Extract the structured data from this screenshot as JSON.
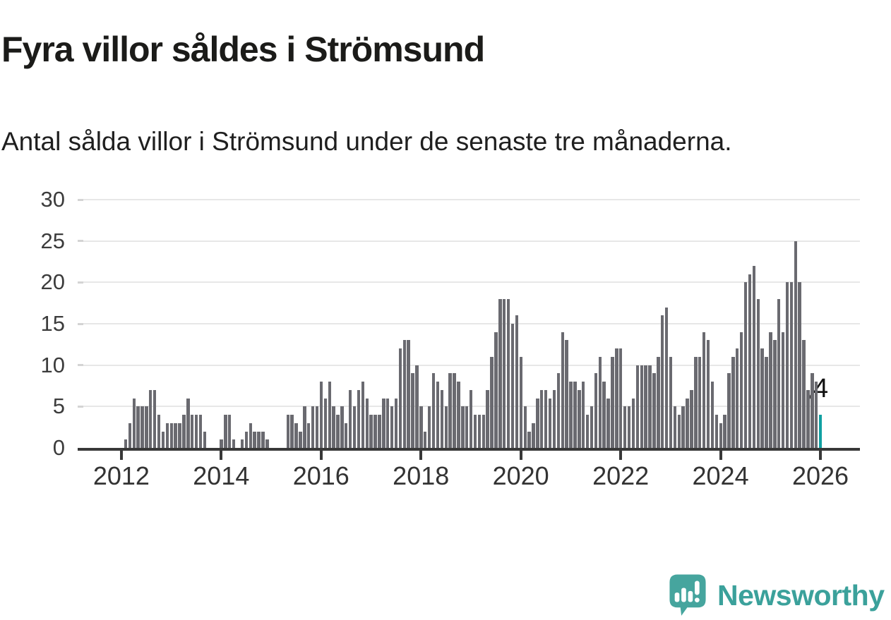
{
  "title": "Fyra villor såldes i Strömsund",
  "subtitle": "Antal sålda villor i Strömsund under de senaste tre månaderna.",
  "annotation": {
    "value_label": "4"
  },
  "branding": {
    "name": "Newsworthy",
    "icon": "newsworthy-speech-bubble-chart-icon"
  },
  "colors": {
    "bar": "#6a6a70",
    "highlight": "#11a0a2",
    "axis": "#383838",
    "grid": "#e7e7e7",
    "text": "#1f1f1f",
    "logo": "#46a59e",
    "logo_text": "#3ba19b"
  },
  "chart_data": {
    "type": "bar",
    "title": "Fyra villor såldes i Strömsund",
    "subtitle": "Antal sålda villor i Strömsund under de senaste tre månaderna.",
    "x_frequency": "monthly",
    "x_start_month": "2011-03",
    "ylim": [
      0,
      30
    ],
    "yticks": [
      0,
      5,
      10,
      15,
      20,
      25,
      30
    ],
    "grid": true,
    "slot_count": 188,
    "xticks": [
      {
        "index": 10,
        "label": "2012"
      },
      {
        "index": 34,
        "label": "2014"
      },
      {
        "index": 58,
        "label": "2016"
      },
      {
        "index": 82,
        "label": "2018"
      },
      {
        "index": 106,
        "label": "2020"
      },
      {
        "index": 130,
        "label": "2022"
      },
      {
        "index": 154,
        "label": "2024"
      },
      {
        "index": 178,
        "label": "2026"
      }
    ],
    "highlight_index": 178,
    "highlight_value": 4,
    "values": [
      0,
      0,
      0,
      0,
      0,
      0,
      0,
      0,
      0,
      0,
      0,
      1,
      3,
      6,
      5,
      5,
      5,
      7,
      7,
      4,
      2,
      3,
      3,
      3,
      3,
      4,
      6,
      4,
      4,
      4,
      2,
      0,
      0,
      0,
      1,
      4,
      4,
      1,
      0,
      1,
      2,
      3,
      2,
      2,
      2,
      1,
      0,
      0,
      0,
      0,
      4,
      4,
      3,
      2,
      5,
      3,
      5,
      5,
      8,
      6,
      8,
      5,
      4,
      5,
      3,
      7,
      5,
      7,
      8,
      6,
      4,
      4,
      4,
      6,
      6,
      5,
      6,
      12,
      13,
      13,
      9,
      10,
      5,
      2,
      5,
      9,
      8,
      7,
      5,
      9,
      9,
      8,
      5,
      5,
      7,
      4,
      4,
      4,
      7,
      11,
      14,
      18,
      18,
      18,
      15,
      16,
      11,
      5,
      2,
      3,
      6,
      7,
      7,
      6,
      7,
      9,
      14,
      13,
      8,
      8,
      7,
      8,
      4,
      5,
      9,
      11,
      8,
      6,
      11,
      12,
      12,
      5,
      5,
      6,
      10,
      10,
      10,
      10,
      9,
      11,
      16,
      17,
      11,
      5,
      4,
      5,
      6,
      7,
      11,
      11,
      14,
      13,
      8,
      4,
      3,
      4,
      9,
      11,
      12,
      14,
      20,
      21,
      22,
      18,
      12,
      11,
      14,
      13,
      18,
      14,
      20,
      20,
      25,
      20,
      13,
      7,
      9,
      8,
      4
    ]
  }
}
